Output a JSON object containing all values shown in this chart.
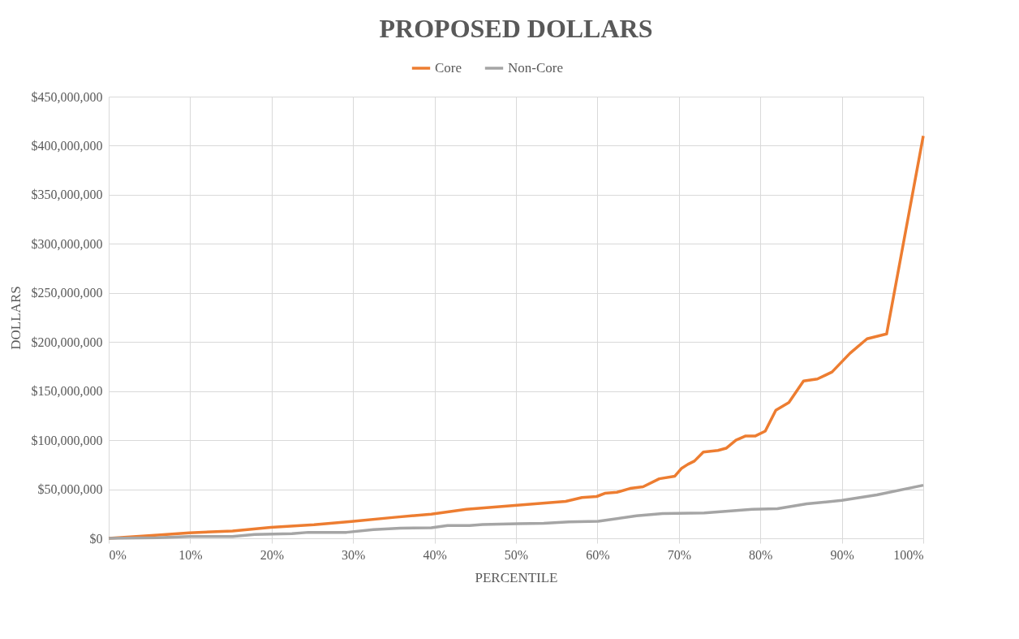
{
  "chart_data": {
    "type": "line",
    "title": "PROPOSED DOLLARS",
    "xlabel": "PERCENTILE",
    "ylabel": "DOLLARS",
    "xlim": [
      0,
      100
    ],
    "ylim": [
      0,
      450000000
    ],
    "xticks": [
      {
        "value": 0,
        "label": "0%"
      },
      {
        "value": 10,
        "label": "10%"
      },
      {
        "value": 20,
        "label": "20%"
      },
      {
        "value": 30,
        "label": "30%"
      },
      {
        "value": 40,
        "label": "40%"
      },
      {
        "value": 50,
        "label": "50%"
      },
      {
        "value": 60,
        "label": "60%"
      },
      {
        "value": 70,
        "label": "70%"
      },
      {
        "value": 80,
        "label": "80%"
      },
      {
        "value": 90,
        "label": "90%"
      },
      {
        "value": 100,
        "label": "100%"
      }
    ],
    "yticks": [
      {
        "value": 0,
        "label": "$0"
      },
      {
        "value": 50000000,
        "label": "$50,000,000"
      },
      {
        "value": 100000000,
        "label": "$100,000,000"
      },
      {
        "value": 150000000,
        "label": "$150,000,000"
      },
      {
        "value": 200000000,
        "label": "$200,000,000"
      },
      {
        "value": 250000000,
        "label": "$250,000,000"
      },
      {
        "value": 300000000,
        "label": "$300,000,000"
      },
      {
        "value": 350000000,
        "label": "$350,000,000"
      },
      {
        "value": 400000000,
        "label": "$400,000,000"
      },
      {
        "value": 450000000,
        "label": "$450,000,000"
      }
    ],
    "grid": true,
    "legend": "top",
    "line_style": "solid",
    "series": [
      {
        "name": "Core",
        "color": "#ed7d31",
        "x": [
          0,
          6,
          9.9,
          15.2,
          19.9,
          25.2,
          29.8,
          35.1,
          39.6,
          43.9,
          48.9,
          56.1,
          58.1,
          59.9,
          60.9,
          62.4,
          64,
          65.6,
          67.6,
          69.5,
          70.3,
          71.1,
          71.9,
          73,
          74.8,
          75.8,
          77,
          78.2,
          79.4,
          80.6,
          81.9,
          83.5,
          85.3,
          87,
          88.8,
          91,
          93.1,
          95.5,
          100
        ],
        "values": [
          0,
          3300000,
          5600000,
          7500000,
          11100000,
          13900000,
          17200000,
          21400000,
          24600000,
          29500000,
          32800000,
          37700000,
          41600000,
          42600000,
          45900000,
          46900000,
          50800000,
          52500000,
          60700000,
          63300000,
          71100000,
          75400000,
          78700000,
          87900000,
          89500000,
          91800000,
          100000000,
          104300000,
          104300000,
          109200000,
          130500000,
          138400000,
          160300000,
          162300000,
          169500000,
          188500000,
          203300000,
          208200000,
          410000000
        ]
      },
      {
        "name": "Non-Core",
        "color": "#a5a5a5",
        "x": [
          0,
          6,
          9.9,
          15.2,
          17.9,
          22.5,
          24.5,
          29.2,
          32.5,
          35.8,
          39.6,
          41.6,
          44.3,
          45.9,
          50.2,
          53.4,
          56.5,
          60.1,
          64.8,
          68,
          73.1,
          79,
          82.1,
          85.7,
          90,
          94.3,
          100
        ],
        "values": [
          0,
          600000,
          1900000,
          1900000,
          3900000,
          4700000,
          6100000,
          6100000,
          8900000,
          10300000,
          10800000,
          13100000,
          13100000,
          14100000,
          14800000,
          15400000,
          16700000,
          17400000,
          23000000,
          25200000,
          25900000,
          29500000,
          30200000,
          35100000,
          38700000,
          44300000,
          54100000
        ]
      }
    ]
  }
}
